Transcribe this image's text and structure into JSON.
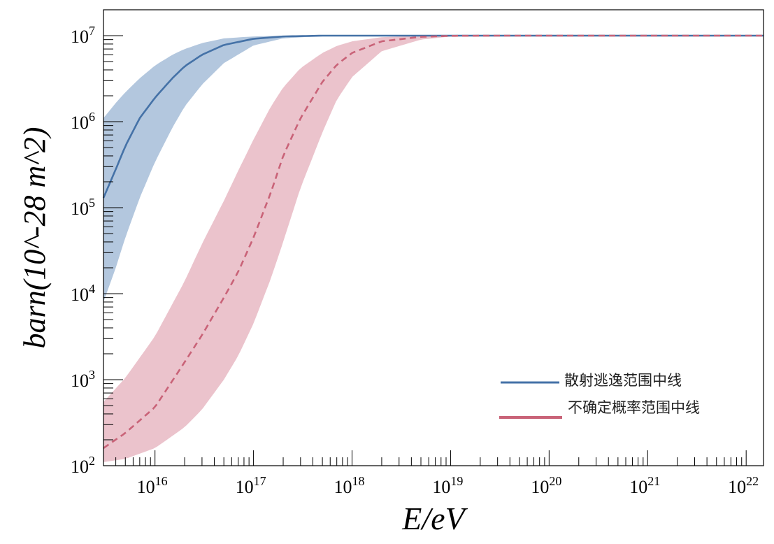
{
  "chart_data": {
    "type": "line",
    "title": "",
    "xlabel": "E/eV",
    "ylabel": "barn(10^-28 m^2)",
    "xscale": "log",
    "yscale": "log",
    "xlim": [
      3000000000000000.0,
      1.5e+22
    ],
    "ylim": [
      100,
      20000000
    ],
    "x_ticks": [
      {
        "base": "10",
        "exp": "16",
        "value": 1e+16
      },
      {
        "base": "10",
        "exp": "17",
        "value": 1e+17
      },
      {
        "base": "10",
        "exp": "18",
        "value": 1e+18
      },
      {
        "base": "10",
        "exp": "19",
        "value": 1e+19
      },
      {
        "base": "10",
        "exp": "20",
        "value": 1e+20
      },
      {
        "base": "10",
        "exp": "21",
        "value": 1e+21
      },
      {
        "base": "10",
        "exp": "22",
        "value": 1e+22
      }
    ],
    "y_ticks": [
      {
        "base": "10",
        "exp": "2",
        "value": 100
      },
      {
        "base": "10",
        "exp": "3",
        "value": 1000
      },
      {
        "base": "10",
        "exp": "4",
        "value": 10000
      },
      {
        "base": "10",
        "exp": "5",
        "value": 100000
      },
      {
        "base": "10",
        "exp": "6",
        "value": 1000000
      },
      {
        "base": "10",
        "exp": "7",
        "value": 10000000
      }
    ],
    "legend_position": "lower-right",
    "series": [
      {
        "name": "散射逃逸范围中线",
        "color": "#4572a7",
        "band_color": "#b3c7de",
        "style": "solid",
        "x": [
          3000000000000000.0,
          4000000000000000.0,
          5000000000000000.0,
          7000000000000000.0,
          1e+16,
          1.5e+16,
          2e+16,
          3e+16,
          5e+16,
          1e+17,
          2e+17,
          5e+17,
          1e+18,
          1e+19,
          1.5e+22
        ],
        "y": [
          130000,
          280000,
          520000,
          1100000,
          1900000,
          3200000,
          4400000,
          6000000,
          7800000,
          9200000,
          9800000,
          10000000,
          10000000,
          10000000,
          10000000
        ],
        "band_low": [
          8000,
          20000,
          45000,
          130000,
          340000,
          850000,
          1500000,
          2700000,
          4800000,
          7700000,
          9300000,
          9900000,
          10000000,
          10000000,
          10000000
        ],
        "band_high": [
          1100000,
          1650000,
          2200000,
          3200000,
          4500000,
          6000000,
          7000000,
          8200000,
          9300000,
          9800000,
          10000000,
          10000000,
          10000000,
          10000000,
          10000000
        ]
      },
      {
        "name": "不确定概率范围中线",
        "color": "#c96378",
        "band_color": "#ebc3cc",
        "style": "dashed",
        "x": [
          3000000000000000.0,
          5000000000000000.0,
          1e+16,
          2e+16,
          3e+16,
          5e+16,
          7e+16,
          1e+17,
          1.5e+17,
          2e+17,
          3e+17,
          5e+17,
          7e+17,
          1e+18,
          2e+18,
          5e+18,
          1e+19,
          3e+19,
          1.5e+22
        ],
        "y": [
          160,
          240,
          480,
          1600,
          3300,
          9000,
          18000,
          45000,
          150000,
          400000,
          1100000,
          2900000,
          4600000,
          6300000,
          8600000,
          9700000,
          9950000,
          10000000,
          10000000
        ],
        "band_low": [
          110,
          120,
          160,
          280,
          450,
          1000,
          1900,
          4500,
          15000,
          40000,
          170000,
          750000,
          1800000,
          3300000,
          6600000,
          9000000,
          9750000,
          10000000,
          10000000
        ],
        "band_high": [
          550,
          1050,
          3200,
          14000,
          38000,
          120000,
          270000,
          620000,
          1500000,
          2500000,
          4200000,
          6300000,
          7600000,
          8600000,
          9600000,
          9950000,
          10000000,
          10000000,
          10000000
        ]
      }
    ]
  }
}
